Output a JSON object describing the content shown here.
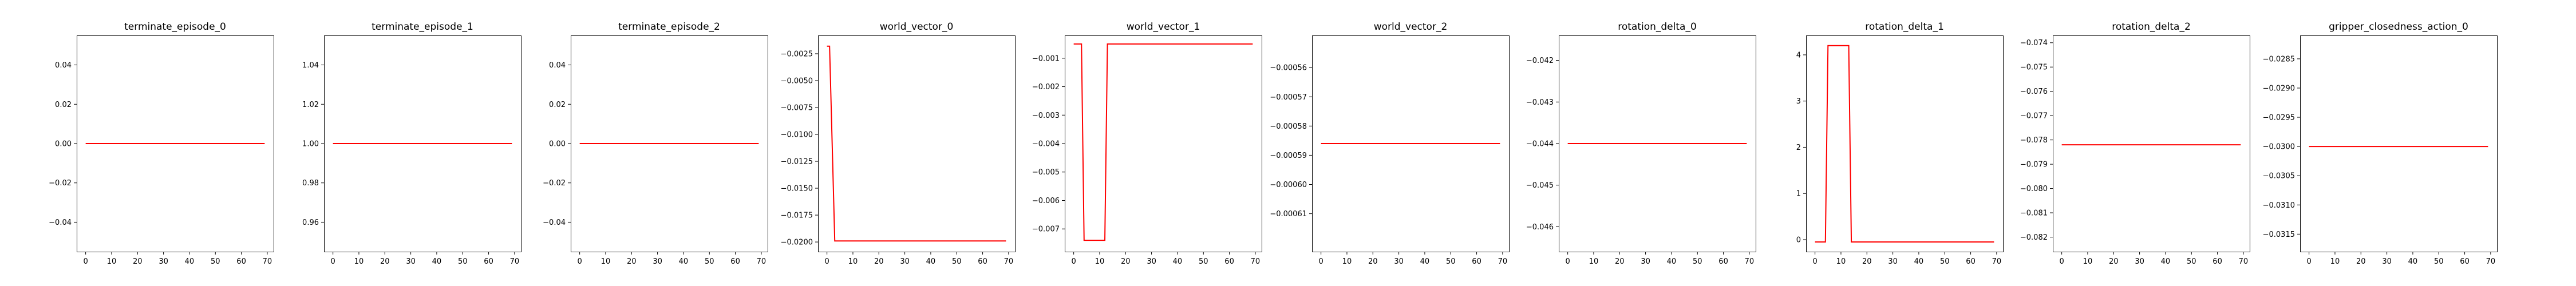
{
  "chart_data": [
    {
      "type": "line",
      "title": "terminate_episode_0",
      "xlim": [
        -3.45,
        72.45
      ],
      "ylim": [
        -0.055,
        0.055
      ],
      "xticks": [
        0,
        10,
        20,
        30,
        40,
        50,
        60,
        70
      ],
      "yticks": [
        -0.04,
        -0.02,
        0.0,
        0.02,
        0.04
      ],
      "ytick_labels": [
        "−0.04",
        "−0.02",
        "0.00",
        "0.02",
        "0.04"
      ],
      "color": "#ff0000",
      "series": [
        {
          "x": [
            0,
            69
          ],
          "y": [
            0.0,
            0.0
          ]
        }
      ]
    },
    {
      "type": "line",
      "title": "terminate_episode_1",
      "xlim": [
        -3.45,
        72.45
      ],
      "ylim": [
        0.945,
        1.055
      ],
      "xticks": [
        0,
        10,
        20,
        30,
        40,
        50,
        60,
        70
      ],
      "yticks": [
        0.96,
        0.98,
        1.0,
        1.02,
        1.04
      ],
      "ytick_labels": [
        "0.96",
        "0.98",
        "1.00",
        "1.02",
        "1.04"
      ],
      "color": "#ff0000",
      "series": [
        {
          "x": [
            0,
            69
          ],
          "y": [
            1.0,
            1.0
          ]
        }
      ]
    },
    {
      "type": "line",
      "title": "terminate_episode_2",
      "xlim": [
        -3.45,
        72.45
      ],
      "ylim": [
        -0.055,
        0.055
      ],
      "xticks": [
        0,
        10,
        20,
        30,
        40,
        50,
        60,
        70
      ],
      "yticks": [
        -0.04,
        -0.02,
        0.0,
        0.02,
        0.04
      ],
      "ytick_labels": [
        "−0.04",
        "−0.02",
        "0.00",
        "0.02",
        "0.04"
      ],
      "color": "#ff0000",
      "series": [
        {
          "x": [
            0,
            69
          ],
          "y": [
            0.0,
            0.0
          ]
        }
      ]
    },
    {
      "type": "line",
      "title": "world_vector_0",
      "xlim": [
        -3.45,
        72.45
      ],
      "ylim": [
        -0.0209,
        -0.0008
      ],
      "xticks": [
        0,
        10,
        20,
        30,
        40,
        50,
        60,
        70
      ],
      "yticks": [
        -0.0025,
        -0.005,
        -0.0075,
        -0.01,
        -0.0125,
        -0.015,
        -0.0175,
        -0.02
      ],
      "ytick_labels": [
        "−0.0025",
        "−0.0050",
        "−0.0075",
        "−0.0100",
        "−0.0125",
        "−0.0150",
        "−0.0175",
        "−0.0200"
      ],
      "color": "#ff0000",
      "series": [
        {
          "x": [
            0,
            1,
            3,
            69
          ],
          "y": [
            -0.0018,
            -0.0018,
            -0.0199,
            -0.0199
          ]
        }
      ]
    },
    {
      "type": "line",
      "title": "world_vector_1",
      "xlim": [
        -3.45,
        72.45
      ],
      "ylim": [
        -0.0078,
        -0.0002
      ],
      "xticks": [
        0,
        10,
        20,
        30,
        40,
        50,
        60,
        70
      ],
      "yticks": [
        -0.001,
        -0.002,
        -0.003,
        -0.004,
        -0.005,
        -0.006,
        -0.007
      ],
      "ytick_labels": [
        "−0.001",
        "−0.002",
        "−0.003",
        "−0.004",
        "−0.005",
        "−0.006",
        "−0.007"
      ],
      "color": "#ff0000",
      "series": [
        {
          "x": [
            0,
            3,
            4,
            12,
            13,
            69
          ],
          "y": [
            -0.0005,
            -0.0005,
            -0.0074,
            -0.0074,
            -0.0005,
            -0.0005
          ]
        }
      ]
    },
    {
      "type": "line",
      "title": "world_vector_2",
      "xlim": [
        -3.45,
        72.45
      ],
      "ylim": [
        -0.000623,
        -0.000549
      ],
      "xticks": [
        0,
        10,
        20,
        30,
        40,
        50,
        60,
        70
      ],
      "yticks": [
        -0.00056,
        -0.00057,
        -0.00058,
        -0.00059,
        -0.0006,
        -0.00061
      ],
      "ytick_labels": [
        "−0.00056",
        "−0.00057",
        "−0.00058",
        "−0.00059",
        "−0.00060",
        "−0.00061"
      ],
      "color": "#ff0000",
      "series": [
        {
          "x": [
            0,
            69
          ],
          "y": [
            -0.000586,
            -0.000586
          ]
        }
      ]
    },
    {
      "type": "line",
      "title": "rotation_delta_0",
      "xlim": [
        -3.45,
        72.45
      ],
      "ylim": [
        -0.0466,
        -0.0414
      ],
      "xticks": [
        0,
        10,
        20,
        30,
        40,
        50,
        60,
        70
      ],
      "yticks": [
        -0.042,
        -0.043,
        -0.044,
        -0.045,
        -0.046
      ],
      "ytick_labels": [
        "−0.042",
        "−0.043",
        "−0.044",
        "−0.045",
        "−0.046"
      ],
      "color": "#ff0000",
      "series": [
        {
          "x": [
            0,
            69
          ],
          "y": [
            -0.044,
            -0.044
          ]
        }
      ]
    },
    {
      "type": "line",
      "title": "rotation_delta_1",
      "xlim": [
        -3.45,
        72.45
      ],
      "ylim": [
        -0.26,
        4.42
      ],
      "xticks": [
        0,
        10,
        20,
        30,
        40,
        50,
        60,
        70
      ],
      "yticks": [
        0,
        1,
        2,
        3,
        4
      ],
      "ytick_labels": [
        "0",
        "1",
        "2",
        "3",
        "4"
      ],
      "color": "#ff0000",
      "series": [
        {
          "x": [
            0,
            4,
            5,
            13,
            14,
            69
          ],
          "y": [
            -0.05,
            -0.05,
            4.2,
            4.2,
            -0.05,
            -0.05
          ]
        }
      ]
    },
    {
      "type": "line",
      "title": "rotation_delta_2",
      "xlim": [
        -3.45,
        72.45
      ],
      "ylim": [
        -0.0826,
        -0.0737
      ],
      "xticks": [
        0,
        10,
        20,
        30,
        40,
        50,
        60,
        70
      ],
      "yticks": [
        -0.074,
        -0.075,
        -0.076,
        -0.077,
        -0.078,
        -0.079,
        -0.08,
        -0.081,
        -0.082
      ],
      "ytick_labels": [
        "−0.074",
        "−0.075",
        "−0.076",
        "−0.077",
        "−0.078",
        "−0.079",
        "−0.080",
        "−0.081",
        "−0.082"
      ],
      "color": "#ff0000",
      "series": [
        {
          "x": [
            0,
            69
          ],
          "y": [
            -0.0782,
            -0.0782
          ]
        }
      ]
    },
    {
      "type": "line",
      "title": "gripper_closedness_action_0",
      "xlim": [
        -3.45,
        72.45
      ],
      "ylim": [
        -0.0318,
        -0.0281
      ],
      "xticks": [
        0,
        10,
        20,
        30,
        40,
        50,
        60,
        70
      ],
      "yticks": [
        -0.0285,
        -0.029,
        -0.0295,
        -0.03,
        -0.0305,
        -0.031,
        -0.0315
      ],
      "ytick_labels": [
        "−0.0285",
        "−0.0290",
        "−0.0295",
        "−0.0300",
        "−0.0305",
        "−0.0310",
        "−0.0315"
      ],
      "color": "#ff0000",
      "series": [
        {
          "x": [
            0,
            69
          ],
          "y": [
            -0.03,
            -0.03
          ]
        }
      ]
    }
  ]
}
